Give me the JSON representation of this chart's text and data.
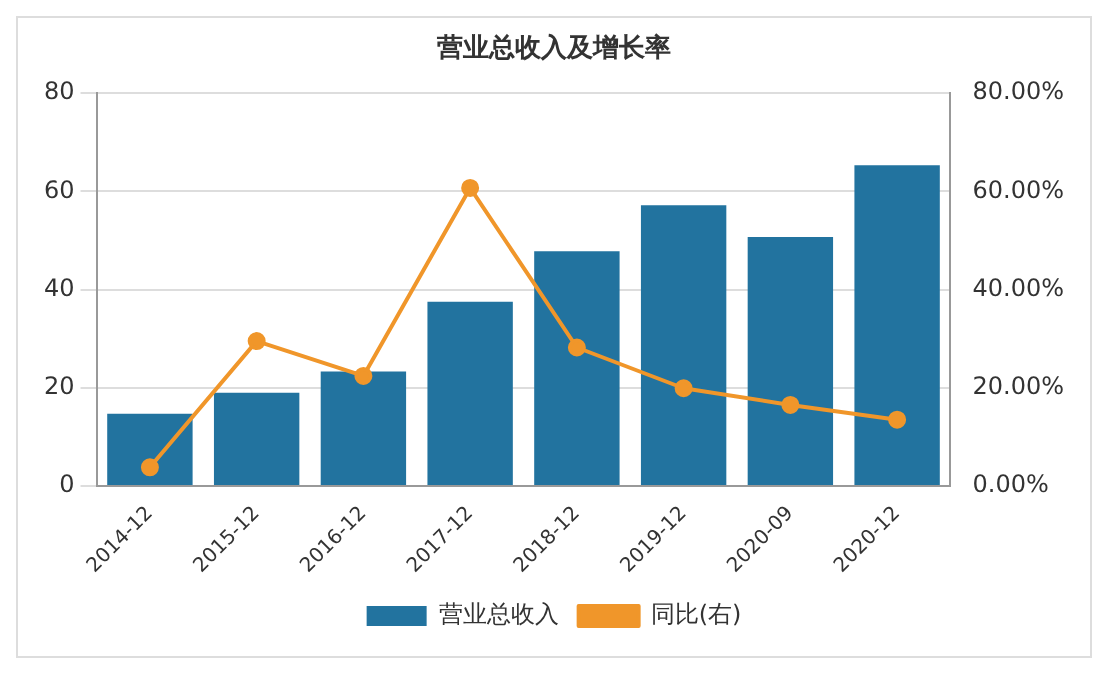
{
  "chart_data": {
    "type": "bar",
    "title": "营业总收入及增长率",
    "categories": [
      "2014-12",
      "2015-12",
      "2016-12",
      "2017-12",
      "2018-12",
      "2019-12",
      "2020-09",
      "2020-12"
    ],
    "series": [
      {
        "name": "营业总收入",
        "color": "#22739f",
        "values": [
          14.7,
          19,
          23.3,
          37.5,
          47.8,
          57.2,
          50.7,
          65.3
        ]
      },
      {
        "name": "同比(右)",
        "type": "line",
        "axis": "y2",
        "color": "#f0962a",
        "marker": "circle",
        "values": [
          3.8,
          29.5,
          22.4,
          60.7,
          28.2,
          19.9,
          16.5,
          13.5
        ]
      }
    ],
    "ylim": [
      0,
      80
    ],
    "yticks": [
      0,
      20,
      40,
      60,
      80
    ],
    "y2lim": [
      0,
      80
    ],
    "y2ticks": [
      {
        "value": 0,
        "label": "0.00%"
      },
      {
        "value": 20,
        "label": "20.00%"
      },
      {
        "value": 40,
        "label": "40.00%"
      },
      {
        "value": 60,
        "label": "60.00%"
      },
      {
        "value": 80,
        "label": "80.00%"
      }
    ],
    "grid": "y",
    "legend": "bottom"
  }
}
